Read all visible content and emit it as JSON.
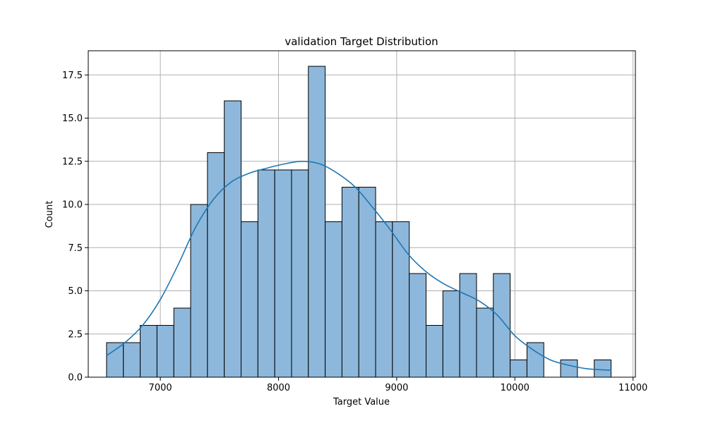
{
  "chart_data": {
    "type": "bar",
    "title": "validation Target Distribution",
    "xlabel": "Target Value",
    "ylabel": "Count",
    "xlim": [
      6390,
      11020
    ],
    "ylim": [
      0,
      18.9
    ],
    "xticks": [
      7000,
      8000,
      9000,
      10000,
      11000
    ],
    "yticks": [
      0.0,
      2.5,
      5.0,
      7.5,
      10.0,
      12.5,
      15.0,
      17.5
    ],
    "bin_start": 6545,
    "bin_width": 142.3,
    "counts": [
      2,
      2,
      3,
      3,
      4,
      10,
      13,
      16,
      9,
      12,
      12,
      12,
      18,
      9,
      11,
      11,
      9,
      9,
      6,
      3,
      5,
      6,
      4,
      6,
      1,
      2,
      0,
      1,
      0,
      1
    ],
    "kde": {
      "x": [
        6545,
        6700,
        6850,
        7000,
        7150,
        7300,
        7450,
        7600,
        7750,
        7900,
        8050,
        8200,
        8350,
        8500,
        8650,
        8800,
        8950,
        9100,
        9250,
        9400,
        9550,
        9700,
        9850,
        10000,
        10150,
        10300,
        10450,
        10600,
        10815
      ],
      "y": [
        1.25,
        2.0,
        3.0,
        4.5,
        6.5,
        8.7,
        10.3,
        11.3,
        11.8,
        12.1,
        12.35,
        12.5,
        12.35,
        11.8,
        11.0,
        9.8,
        8.5,
        7.1,
        6.1,
        5.4,
        4.9,
        4.4,
        3.6,
        2.4,
        1.6,
        1.0,
        0.7,
        0.5,
        0.4
      ]
    },
    "colors": {
      "bar_fill": "#8db8db",
      "bar_stroke": "#000000",
      "kde_line": "#1f77b4",
      "grid": "#b0b0b0"
    },
    "grid": true
  }
}
